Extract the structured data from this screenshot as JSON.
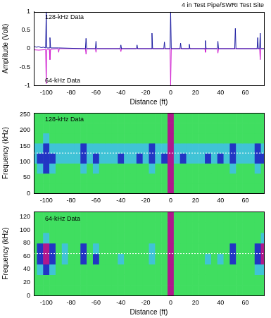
{
  "chart_data": [
    {
      "type": "line",
      "title": "4 in Test Pipe/SWRI Test Site",
      "x_label": "Distance (ft)",
      "y_label": "Amplitude (Volt)",
      "xlim": [
        -110,
        75
      ],
      "xticks": [
        -100,
        -80,
        -60,
        -40,
        -20,
        0,
        20,
        40,
        60
      ],
      "ylim": [
        -1,
        1
      ],
      "yticks": [
        -1,
        -0.5,
        0,
        0.5,
        1
      ],
      "grid": false,
      "series": [
        {
          "color": "#1a1aa0",
          "x": [
            -110,
            -108,
            -106,
            -104,
            -102,
            -100.5,
            -100,
            -99.5,
            -97.5,
            -97,
            -96.5,
            -90,
            -68.5,
            -68,
            -67.5,
            -60.5,
            -60,
            -59.5,
            -40.5,
            -40,
            -39.5,
            -27.5,
            -27,
            -26.5,
            -15.5,
            -15,
            -14.5,
            -5.5,
            -5,
            -4.5,
            -0.5,
            0,
            0.5,
            7.5,
            8,
            8.5,
            14.5,
            15,
            15.5,
            27.5,
            28,
            28.5,
            37.5,
            38,
            38.5,
            51.5,
            52,
            52.5,
            69.5,
            70,
            70.5,
            71.5,
            72,
            72.5,
            75
          ],
          "values": [
            0.06,
            0.04,
            0.05,
            0.03,
            0.04,
            0.02,
            1.0,
            0.02,
            0.02,
            0.3,
            0.02,
            0.02,
            0,
            0.28,
            0,
            0,
            0.2,
            0,
            0,
            0.1,
            0,
            0,
            0.1,
            0,
            0,
            0.42,
            0,
            0,
            0.18,
            0,
            0,
            1.0,
            0,
            0,
            0.15,
            0,
            0,
            0.12,
            0,
            0,
            0.22,
            0,
            0,
            0.2,
            0,
            0,
            0.55,
            0,
            0,
            0.3,
            0,
            0,
            0.42,
            0,
            0
          ]
        },
        {
          "color": "#d020d0",
          "x": [
            -110,
            -106,
            -102,
            -100.5,
            -100,
            -99.5,
            -97.5,
            -97,
            -96.5,
            -90.5,
            -90,
            -89.5,
            -68.5,
            -68,
            -67.5,
            -60.5,
            -60,
            -59.5,
            -40.5,
            -40,
            -39.5,
            -0.5,
            0,
            0.5,
            27.5,
            28,
            28.5,
            37.5,
            38,
            38.5,
            71.5,
            72,
            72.5,
            75
          ],
          "values": [
            -0.03,
            -0.04,
            -0.03,
            -0.02,
            -0.95,
            -0.02,
            -0.02,
            -0.3,
            -0.02,
            0,
            -0.1,
            0,
            0,
            -0.15,
            0,
            0,
            -0.1,
            0,
            0,
            -0.08,
            0,
            0,
            -1.0,
            0,
            0,
            -0.1,
            0,
            0,
            -0.12,
            0,
            0,
            -0.3,
            0,
            0
          ]
        }
      ],
      "annotations": [
        {
          "text": "128-kHz Data",
          "x": -101,
          "y": 0.85
        },
        {
          "text": "64-kHz Data",
          "x": -101,
          "y": -0.88
        }
      ]
    },
    {
      "type": "heatmap",
      "y_label": "Frequency (kHz)",
      "xlim": [
        -110,
        75
      ],
      "xticks": [
        -100,
        -80,
        -60,
        -40,
        -20,
        0,
        20,
        40,
        60
      ],
      "ylim": [
        0,
        256
      ],
      "yticks": [
        0,
        50,
        100,
        150,
        200,
        250
      ],
      "grid": false,
      "x_edges": [
        -112.5,
        -107.5,
        -102.5,
        -97.5,
        -92.5,
        -87.5,
        -82.5,
        -77.5,
        -72.5,
        -67.5,
        -62.5,
        -57.5,
        -52.5,
        -47.5,
        -42.5,
        -37.5,
        -32.5,
        -27.5,
        -22.5,
        -17.5,
        -12.5,
        -7.5,
        -2.5,
        2.5,
        7.5,
        12.5,
        17.5,
        22.5,
        27.5,
        32.5,
        37.5,
        42.5,
        47.5,
        52.5,
        57.5,
        62.5,
        67.5,
        72.5,
        77.5
      ],
      "y_edges": [
        0,
        32,
        64,
        96,
        128,
        160,
        192,
        224,
        256
      ],
      "zlim": [
        0,
        3
      ],
      "z": [
        [
          0,
          0,
          0,
          0,
          0,
          0,
          0,
          0,
          0,
          0,
          0,
          0,
          0,
          0,
          0,
          0,
          0,
          0,
          0,
          0,
          0,
          0,
          3,
          0,
          0,
          0,
          0,
          0,
          0,
          0,
          0,
          0,
          0,
          0,
          0,
          0,
          0,
          0
        ],
        [
          0,
          0,
          0,
          0,
          0,
          0,
          0,
          0,
          0,
          0,
          0,
          0,
          0,
          0,
          0,
          0,
          0,
          0,
          0,
          0,
          0,
          0,
          3,
          0,
          0,
          0,
          0,
          0,
          0,
          0,
          0,
          0,
          0,
          0,
          0,
          0,
          0,
          0
        ],
        [
          0,
          1,
          2,
          1,
          0,
          0,
          0,
          0,
          1,
          0,
          1,
          0,
          0,
          0,
          0,
          0,
          0,
          0,
          0,
          1,
          0,
          0,
          3,
          0,
          0,
          0,
          0,
          0,
          0,
          0,
          0,
          0,
          1,
          0,
          0,
          0,
          1,
          0
        ],
        [
          1,
          2,
          2,
          2,
          1,
          1,
          1,
          1,
          2,
          1,
          2,
          1,
          1,
          1,
          2,
          1,
          1,
          2,
          1,
          2,
          1,
          2,
          3,
          1,
          2,
          1,
          1,
          1,
          2,
          1,
          2,
          1,
          2,
          1,
          1,
          1,
          2,
          2
        ],
        [
          1,
          1,
          2,
          1,
          1,
          1,
          1,
          1,
          2,
          1,
          1,
          1,
          1,
          1,
          1,
          1,
          1,
          1,
          1,
          2,
          1,
          1,
          3,
          1,
          1,
          1,
          1,
          1,
          1,
          1,
          1,
          1,
          2,
          1,
          1,
          1,
          2,
          1
        ],
        [
          0,
          0,
          1,
          0,
          0,
          0,
          0,
          0,
          0,
          0,
          0,
          0,
          0,
          0,
          0,
          0,
          0,
          0,
          0,
          0,
          0,
          0,
          3,
          0,
          0,
          0,
          0,
          0,
          0,
          0,
          0,
          0,
          0,
          0,
          0,
          0,
          0,
          0
        ],
        [
          0,
          0,
          0,
          0,
          0,
          0,
          0,
          0,
          0,
          0,
          0,
          0,
          0,
          0,
          0,
          0,
          0,
          0,
          0,
          0,
          0,
          0,
          3,
          0,
          0,
          0,
          0,
          0,
          0,
          0,
          0,
          0,
          0,
          0,
          0,
          0,
          0,
          0
        ],
        [
          0,
          0,
          0,
          0,
          0,
          0,
          0,
          0,
          0,
          0,
          0,
          0,
          0,
          0,
          0,
          0,
          0,
          0,
          0,
          0,
          0,
          0,
          3,
          0,
          0,
          0,
          0,
          0,
          0,
          0,
          0,
          0,
          0,
          0,
          0,
          0,
          0,
          0
        ]
      ],
      "reference_lines": [
        128
      ],
      "annotations": [
        {
          "text": "128-kHz Data",
          "x": -101,
          "y": 235
        }
      ]
    },
    {
      "type": "heatmap",
      "x_label": "Distance (ft)",
      "y_label": "Frequency (kHz)",
      "xlim": [
        -110,
        75
      ],
      "xticks": [
        -100,
        -80,
        -60,
        -40,
        -20,
        0,
        20,
        40,
        60
      ],
      "ylim": [
        0,
        128
      ],
      "yticks": [
        0,
        20,
        40,
        60,
        80,
        100,
        120
      ],
      "grid": false,
      "x_edges": [
        -112.5,
        -107.5,
        -102.5,
        -97.5,
        -92.5,
        -87.5,
        -82.5,
        -77.5,
        -72.5,
        -67.5,
        -62.5,
        -57.5,
        -52.5,
        -47.5,
        -42.5,
        -37.5,
        -32.5,
        -27.5,
        -22.5,
        -17.5,
        -12.5,
        -7.5,
        -2.5,
        2.5,
        7.5,
        12.5,
        17.5,
        22.5,
        27.5,
        32.5,
        37.5,
        42.5,
        47.5,
        52.5,
        57.5,
        62.5,
        67.5,
        72.5,
        77.5
      ],
      "y_edges": [
        0,
        16,
        32,
        48,
        64,
        80,
        96,
        112,
        128
      ],
      "zlim": [
        0,
        3
      ],
      "z": [
        [
          0,
          0,
          0,
          0,
          0,
          0,
          0,
          0,
          0,
          0,
          0,
          0,
          0,
          0,
          0,
          0,
          0,
          0,
          0,
          0,
          0,
          0,
          3,
          0,
          0,
          0,
          0,
          0,
          0,
          0,
          0,
          0,
          0,
          0,
          0,
          0,
          0,
          0
        ],
        [
          0,
          0,
          0,
          0,
          0,
          0,
          0,
          0,
          0,
          0,
          0,
          0,
          0,
          0,
          0,
          0,
          0,
          0,
          0,
          0,
          0,
          0,
          3,
          0,
          0,
          0,
          0,
          0,
          0,
          0,
          0,
          0,
          0,
          0,
          0,
          0,
          0,
          0
        ],
        [
          0,
          1,
          2,
          1,
          0,
          0,
          0,
          0,
          0,
          0,
          0,
          0,
          0,
          0,
          0,
          0,
          0,
          0,
          0,
          0,
          0,
          0,
          3,
          0,
          0,
          0,
          0,
          0,
          0,
          0,
          0,
          0,
          0,
          0,
          0,
          0,
          1,
          1
        ],
        [
          0,
          2,
          3,
          2,
          0,
          1,
          0,
          0,
          2,
          0,
          2,
          0,
          0,
          0,
          1,
          0,
          0,
          0,
          0,
          1,
          0,
          0,
          3,
          0,
          0,
          0,
          0,
          0,
          1,
          0,
          1,
          0,
          2,
          0,
          0,
          0,
          2,
          3
        ],
        [
          0,
          2,
          3,
          2,
          0,
          1,
          0,
          0,
          2,
          0,
          1,
          0,
          0,
          0,
          0,
          0,
          0,
          0,
          0,
          1,
          0,
          0,
          3,
          0,
          0,
          0,
          0,
          0,
          0,
          0,
          0,
          0,
          2,
          0,
          0,
          0,
          2,
          3
        ],
        [
          0,
          0,
          1,
          0,
          0,
          0,
          0,
          0,
          0,
          0,
          0,
          0,
          0,
          0,
          0,
          0,
          0,
          0,
          0,
          0,
          0,
          0,
          3,
          0,
          0,
          0,
          0,
          0,
          0,
          0,
          0,
          0,
          0,
          0,
          0,
          0,
          0,
          1
        ],
        [
          0,
          0,
          0,
          0,
          0,
          0,
          0,
          0,
          0,
          0,
          0,
          0,
          0,
          0,
          0,
          0,
          0,
          0,
          0,
          0,
          0,
          0,
          3,
          0,
          0,
          0,
          0,
          0,
          0,
          0,
          0,
          0,
          0,
          0,
          0,
          0,
          0,
          0
        ],
        [
          0,
          0,
          0,
          0,
          0,
          0,
          0,
          0,
          0,
          0,
          0,
          0,
          0,
          0,
          0,
          0,
          0,
          0,
          0,
          0,
          0,
          0,
          3,
          0,
          0,
          0,
          0,
          0,
          0,
          0,
          0,
          0,
          0,
          0,
          0,
          0,
          0,
          0
        ]
      ],
      "reference_lines": [
        64
      ],
      "annotations": [
        {
          "text": "64-kHz Data",
          "x": -101,
          "y": 117
        }
      ]
    }
  ]
}
